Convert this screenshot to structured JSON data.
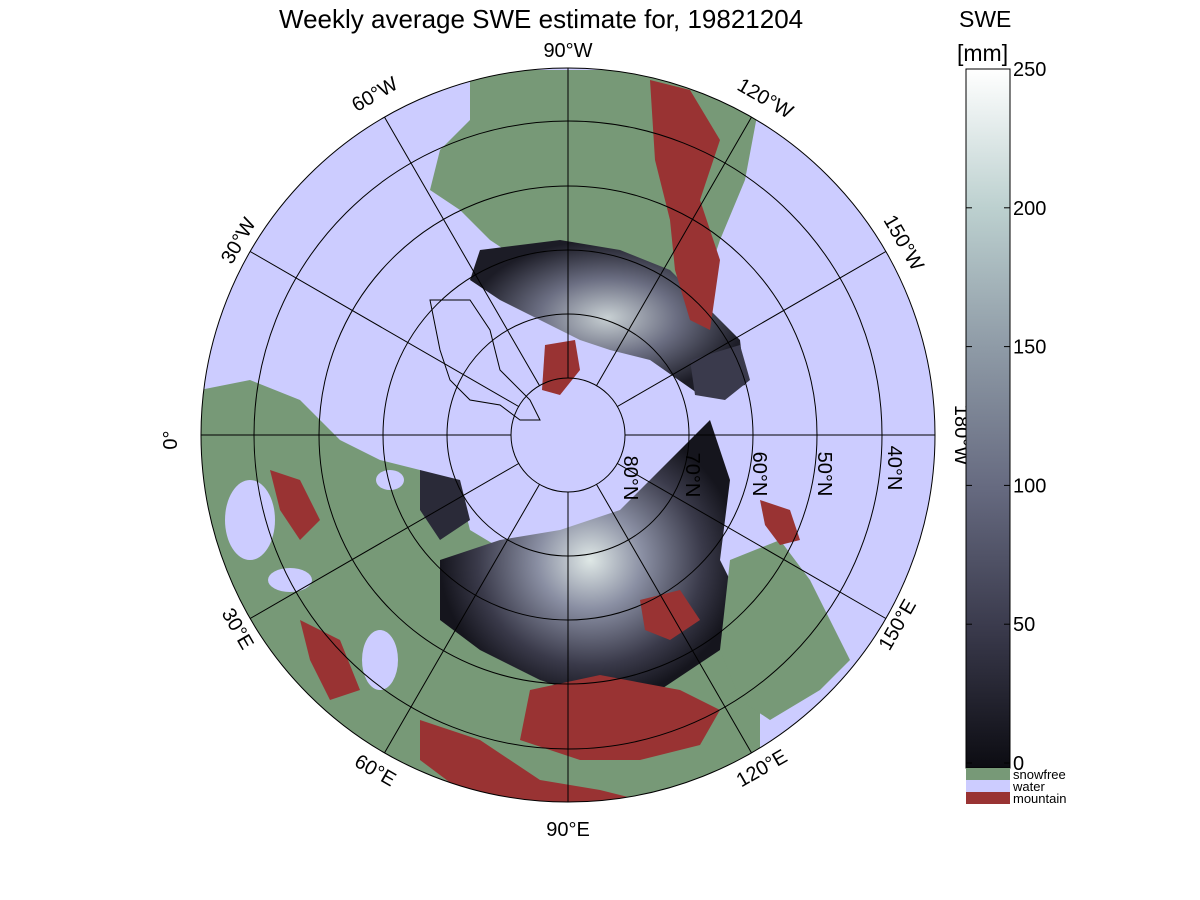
{
  "map": {
    "title": "Weekly average SWE estimate for, 19821204",
    "longitude_labels": [
      "90°W",
      "120°W",
      "150°W",
      "180°W",
      "150°E",
      "120°E",
      "90°E",
      "60°E",
      "30°E",
      "0°",
      "30°W",
      "60°W"
    ],
    "latitude_labels": [
      "80°N",
      "70°N",
      "60°N",
      "50°N",
      "40°N"
    ],
    "colors": {
      "water": "#ccccff",
      "snowfree": "#779977",
      "mountain": "#993333",
      "snow_low": "#0c0c12",
      "snow_high": "#ffffff"
    }
  },
  "colorbar": {
    "title_line1": "SWE",
    "title_line2": "[mm]",
    "ticks": [
      "0",
      "50",
      "100",
      "150",
      "200",
      "250"
    ],
    "scale_min": 0,
    "scale_max": 250,
    "legend": [
      {
        "label": "snowfree",
        "color": "#779977"
      },
      {
        "label": "water",
        "color": "#ccccff"
      },
      {
        "label": "mountain",
        "color": "#993333"
      }
    ]
  }
}
